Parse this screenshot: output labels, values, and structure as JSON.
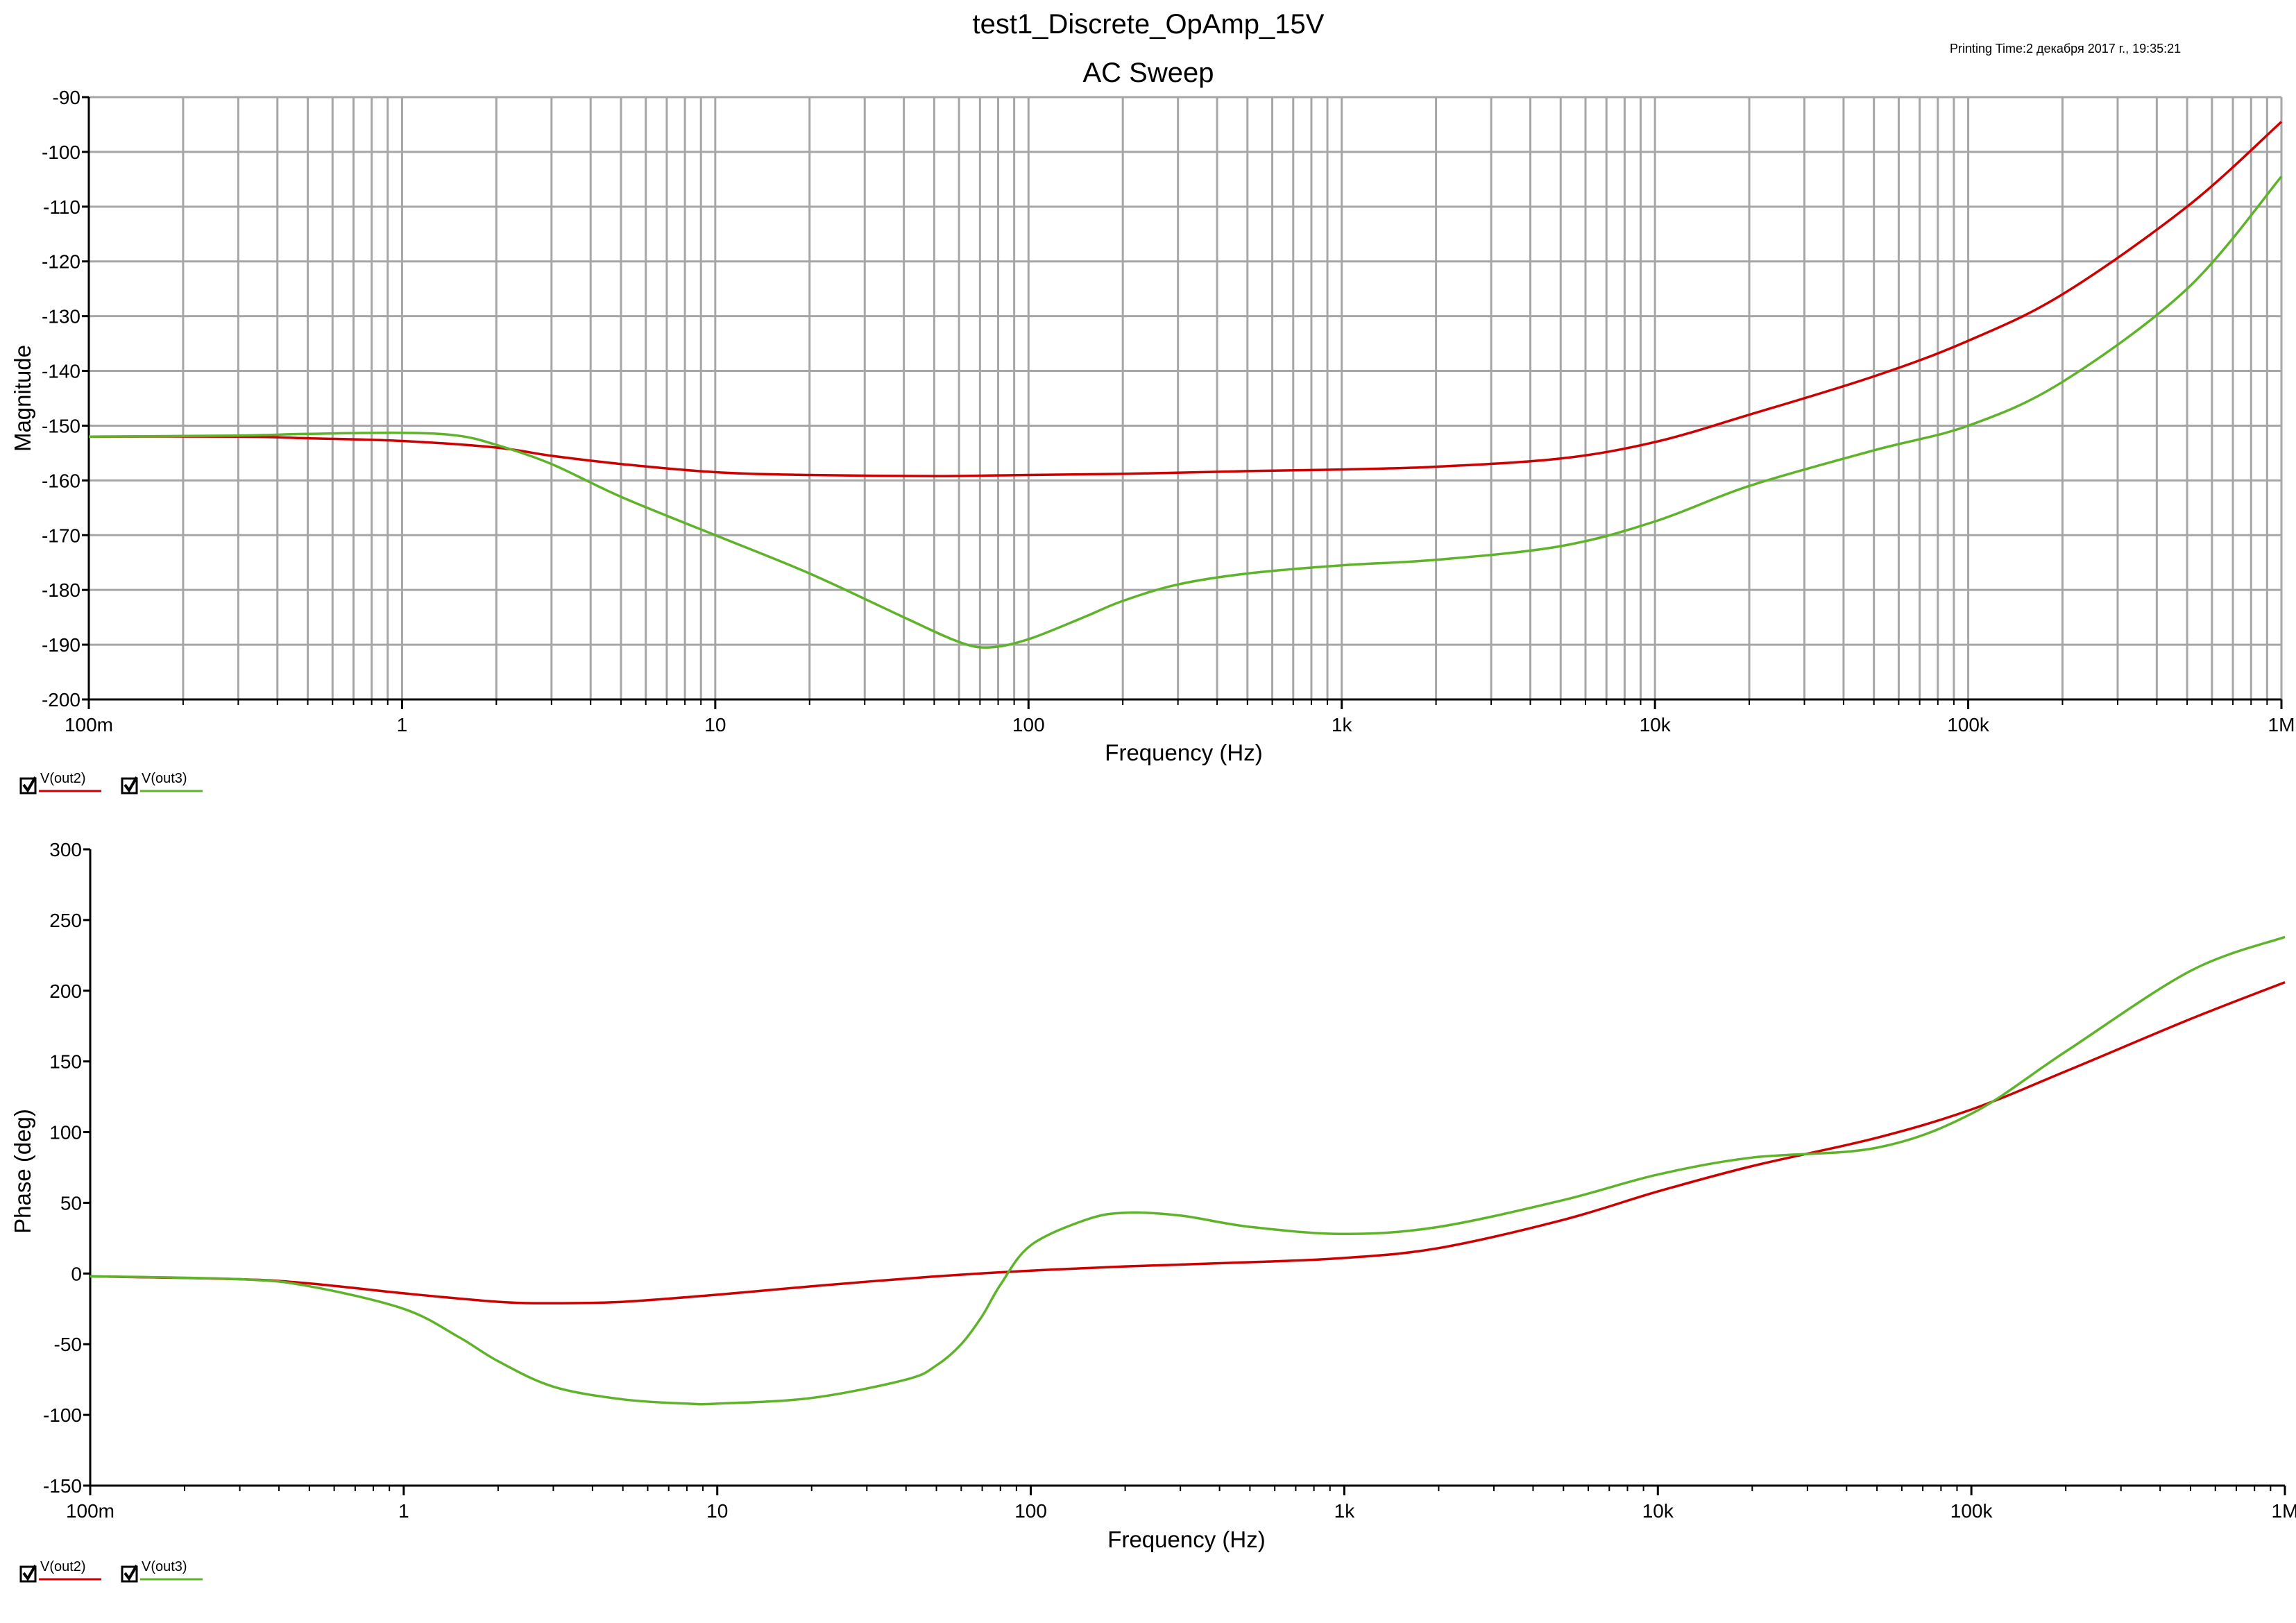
{
  "header": {
    "title": "test1_Discrete_OpAmp_15V",
    "subtitle": "AC Sweep",
    "printing_time": "Printing Time:2 декабря 2017 г., 19:35:21"
  },
  "colors": {
    "out2": "#cc0000",
    "out3": "#5fb32a",
    "grid": "#a6a6a6",
    "axis": "#000000"
  },
  "chart_data": [
    {
      "type": "line",
      "title": "",
      "xlabel": "Frequency (Hz)",
      "ylabel": "Magnitude",
      "x_scale": "log",
      "xlim": [
        0.1,
        1000000
      ],
      "ylim": [
        -200,
        -90
      ],
      "grid": true,
      "legend_position": "bottom-left",
      "x_ticks": [
        0.1,
        1,
        10,
        100,
        1000,
        10000,
        100000,
        1000000
      ],
      "x_tick_labels": [
        "100m",
        "1",
        "10",
        "100",
        "1k",
        "10k",
        "100k",
        "1M"
      ],
      "y_ticks": [
        -90,
        -100,
        -110,
        -120,
        -130,
        -140,
        -150,
        -160,
        -170,
        -180,
        -190,
        -200
      ],
      "y_tick_labels": [
        "-90",
        "-100",
        "-110",
        "-120",
        "-130",
        "-140",
        "-150",
        "-160",
        "-170",
        "-180",
        "-190",
        "-200"
      ],
      "series": [
        {
          "name": "V(out2)",
          "x": [
            0.1,
            0.3,
            0.5,
            1,
            2,
            3,
            5,
            10,
            20,
            50,
            100,
            200,
            500,
            1000,
            2000,
            5000,
            10000,
            20000,
            50000,
            100000,
            200000,
            500000,
            1000000
          ],
          "values": [
            -152,
            -152,
            -152.3,
            -152.8,
            -154,
            -155.5,
            -157,
            -158.5,
            -159,
            -159.2,
            -159,
            -158.8,
            -158.3,
            -158,
            -157.5,
            -156,
            -153,
            -148,
            -141,
            -134.5,
            -126,
            -110,
            -94.5
          ]
        },
        {
          "name": "V(out3)",
          "x": [
            0.1,
            0.3,
            0.5,
            1,
            1.5,
            2,
            3,
            5,
            10,
            20,
            40,
            60,
            75,
            100,
            150,
            200,
            300,
            500,
            1000,
            2000,
            5000,
            10000,
            20000,
            50000,
            100000,
            200000,
            500000,
            1000000
          ],
          "values": [
            -152,
            -151.8,
            -151.5,
            -151.3,
            -151.8,
            -153.5,
            -157,
            -163,
            -170,
            -177,
            -185,
            -189.5,
            -190.5,
            -189,
            -185,
            -182,
            -179,
            -177,
            -175.5,
            -174.5,
            -172,
            -167.5,
            -161,
            -154.5,
            -150,
            -142,
            -125,
            -104.5
          ]
        }
      ]
    },
    {
      "type": "line",
      "title": "",
      "xlabel": "Frequency (Hz)",
      "ylabel": "Phase (deg)",
      "x_scale": "log",
      "xlim": [
        0.1,
        1000000
      ],
      "ylim": [
        -150,
        300
      ],
      "grid": false,
      "legend_position": "bottom-left",
      "x_ticks": [
        0.1,
        1,
        10,
        100,
        1000,
        10000,
        100000,
        1000000
      ],
      "x_tick_labels": [
        "100m",
        "1",
        "10",
        "100",
        "1k",
        "10k",
        "100k",
        "1M"
      ],
      "y_ticks": [
        300,
        250,
        200,
        150,
        100,
        50,
        0,
        -50,
        -100,
        -150
      ],
      "y_tick_labels": [
        "300",
        "250",
        "200",
        "150",
        "100",
        "50",
        "0",
        "-50",
        "-100",
        "-150"
      ],
      "series": [
        {
          "name": "V(out2)",
          "x": [
            0.1,
            0.3,
            0.5,
            1,
            2,
            3,
            5,
            10,
            20,
            50,
            100,
            200,
            500,
            1000,
            2000,
            5000,
            10000,
            20000,
            50000,
            100000,
            200000,
            500000,
            1000000
          ],
          "values": [
            -2,
            -4,
            -7,
            -14,
            -20,
            -21,
            -20,
            -15,
            -9,
            -2,
            2,
            5,
            8,
            11,
            18,
            38,
            58,
            76,
            96,
            116,
            143,
            180,
            206
          ]
        },
        {
          "name": "V(out3)",
          "x": [
            0.1,
            0.3,
            0.5,
            1,
            1.5,
            2,
            3,
            5,
            8,
            10,
            20,
            40,
            50,
            60,
            70,
            80,
            100,
            150,
            200,
            300,
            500,
            1000,
            2000,
            5000,
            10000,
            20000,
            50000,
            100000,
            200000,
            500000,
            1000000
          ],
          "values": [
            -2,
            -4,
            -9,
            -25,
            -45,
            -62,
            -80,
            -89,
            -92,
            -92,
            -88,
            -75,
            -65,
            -50,
            -30,
            -8,
            20,
            38,
            43,
            41,
            33,
            28,
            33,
            52,
            70,
            82,
            89,
            113,
            157,
            214,
            238
          ]
        }
      ]
    }
  ]
}
